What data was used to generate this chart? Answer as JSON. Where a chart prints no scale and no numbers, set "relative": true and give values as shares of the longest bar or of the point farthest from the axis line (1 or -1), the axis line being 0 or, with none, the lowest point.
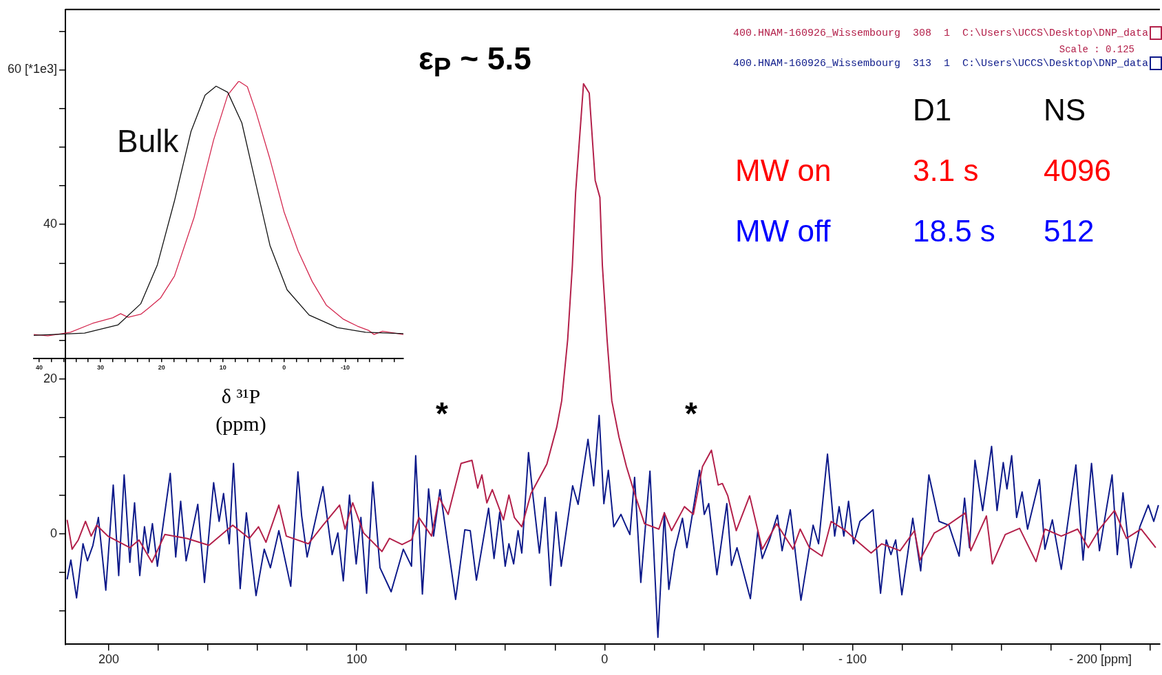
{
  "chart_data": [
    {
      "type": "line",
      "annotations": [
        "ε$_{P}$ ~ 5.5",
        "Scale : 0.125",
        "D1",
        "NS",
        "MW on",
        "3.1 s",
        "4096",
        "MW off",
        "18.5 s",
        "512",
        "*",
        "*"
      ],
      "xlim": [
        217.5,
        -224
      ],
      "ylim": [
        -14.3,
        67.8
      ],
      "xticks": [
        200,
        {
          "value": 180,
          "label": null
        },
        {
          "value": 160,
          "label": null
        },
        {
          "value": 140,
          "label": null
        },
        {
          "value": 120,
          "label": null
        },
        100,
        {
          "value": 80,
          "label": null
        },
        {
          "value": 60,
          "label": null
        },
        {
          "value": 40,
          "label": null
        },
        {
          "value": 20,
          "label": null
        },
        0,
        {
          "value": -20,
          "label": null
        },
        {
          "value": -40,
          "label": null
        },
        {
          "value": -60,
          "label": null
        },
        {
          "value": -80,
          "label": null
        },
        {
          "value": -100,
          "label": "- 100"
        },
        {
          "value": -120,
          "label": null
        },
        {
          "value": -140,
          "label": null
        },
        {
          "value": -160,
          "label": null
        },
        {
          "value": -180,
          "label": null
        },
        {
          "value": -200,
          "label": "- 200 [ppm]"
        },
        {
          "value": -220,
          "label": null
        }
      ],
      "yticks": [
        {
          "value": -10,
          "label": null
        },
        {
          "value": -5,
          "label": null
        },
        0,
        {
          "value": 5,
          "label": null
        },
        {
          "value": 10,
          "label": null
        },
        {
          "value": 15,
          "label": null
        },
        20,
        {
          "value": 25,
          "label": null
        },
        {
          "value": 30,
          "label": null
        },
        {
          "value": 35,
          "label": null
        },
        40,
        {
          "value": 45,
          "label": null
        },
        {
          "value": 50,
          "label": null
        },
        {
          "value": 55,
          "label": null
        },
        {
          "value": 60,
          "label": "60 [*1e3]"
        },
        {
          "value": 65,
          "label": null
        }
      ],
      "grid": false,
      "legend": "top right",
      "marker": "none",
      "series": [
        {
          "name": "400.HNAM-160926_Wissembourg  308  1  C:\\Users\\UCCS\\Desktop\\DNP_data",
          "color": "#b3204a",
          "x": [
            216.8,
            214.8,
            212.3,
            209.4,
            207.1,
            204.9,
            200.4,
            191.5,
            187.8,
            182.6,
            177.4,
            168.5,
            159.6,
            150,
            143.3,
            139.6,
            136.6,
            131.4,
            128.4,
            119.5,
            113.6,
            106.9,
            104.7,
            101.6,
            97.2,
            89.8,
            86.8,
            81.7,
            77.9,
            74.9,
            69.8,
            66.8,
            63.1,
            57.9,
            53.5,
            51.2,
            49.5,
            47.5,
            45.3,
            40.8,
            38.6,
            36.4,
            33.4,
            29.7,
            23.3,
            19.3,
            17.3,
            14.9,
            13,
            11.7,
            8.5,
            6.2,
            3.8,
            1.9,
            0.9,
            -1.0,
            -2.9,
            -5.8,
            -8.8,
            -12.4,
            -16.1,
            -21.9,
            -24.1,
            -27,
            -32.2,
            -35.8,
            -39.5,
            -43.1,
            -45.8,
            -47.5,
            -49.7,
            -53.1,
            -58.5,
            -63.6,
            -69.4,
            -76,
            -78.9,
            -82.6,
            -87.7,
            -91.4,
            -97.2,
            -103.1,
            -107.5,
            -111.8,
            -119.2,
            -125,
            -127.2,
            -133,
            -137.4,
            -145.5,
            -147.7,
            -154,
            -156.4,
            -161.6,
            -167.4,
            -174,
            -177.6,
            -184.2,
            -190.8,
            -195.1,
            -199.6,
            -205.7,
            -210.5,
            -216.4,
            -222.3
          ],
          "values": [
            1.8,
            -2.0,
            -0.8,
            1.6,
            -0.3,
            1.1,
            -0.3,
            -1.8,
            -0.8,
            -3.7,
            -0.1,
            -0.6,
            -1.5,
            1.1,
            -0.6,
            0.9,
            -1.1,
            3.7,
            -0.3,
            -1.3,
            1.1,
            3.7,
            0.6,
            4.0,
            0.1,
            -2.3,
            -0.6,
            -1.4,
            -0.8,
            2.1,
            -0.3,
            4.7,
            2.5,
            9.1,
            9.5,
            5.9,
            7.6,
            4.0,
            5.7,
            1.8,
            5.0,
            2.1,
            0.9,
            5.2,
            9.0,
            13.8,
            17.2,
            25.1,
            34.7,
            44.1,
            58.2,
            57,
            45.7,
            43.5,
            34.7,
            25.1,
            17.2,
            12.5,
            8.7,
            4.9,
            1.3,
            0.6,
            2.7,
            0.4,
            3.5,
            2.5,
            8.7,
            10.8,
            6.3,
            6.5,
            4.9,
            0.4,
            4.9,
            -2.0,
            1.3,
            -2.0,
            0.6,
            -1.8,
            -2.9,
            1.6,
            0.4,
            -1.3,
            -2.5,
            -1.3,
            -2.2,
            0.4,
            -3.4,
            0.1,
            0.9,
            2.7,
            -2.2,
            2.3,
            -3.9,
            -0.1,
            0.7,
            -3.6,
            0.6,
            -0.3,
            0.6,
            -1.8,
            0.6,
            3.0,
            -0.6,
            0.6,
            -1.8
          ]
        },
        {
          "name": "400.HNAM-160926_Wissembourg  313  1  C:\\Users\\UCCS\\Desktop\\DNP_data",
          "color": "#0d1a8a",
          "x": [
            216.8,
            215.3,
            213,
            210.4,
            208.6,
            206.4,
            204.2,
            201.2,
            198.2,
            196,
            193.8,
            191.5,
            189.6,
            187.5,
            185.6,
            184.1,
            182.4,
            180.4,
            175.2,
            173,
            171,
            168.8,
            164.1,
            161.4,
            157.7,
            155.5,
            153.7,
            151.4,
            149.7,
            147,
            144.5,
            140.6,
            137.3,
            134.8,
            131.4,
            126.6,
            123.7,
            122.2,
            120,
            113.6,
            109.9,
            107.6,
            105.4,
            102.9,
            100.2,
            98.3,
            96,
            93.5,
            90.6,
            86.1,
            81.2,
            77.9,
            76.2,
            73.5,
            71,
            69,
            66.4,
            60.1,
            56.4,
            54.2,
            51.7,
            46.8,
            44.6,
            42.3,
            40.1,
            38.6,
            36.7,
            34.9,
            33.4,
            30.7,
            29,
            26.3,
            24,
            21.8,
            19.6,
            17.5,
            12.9,
            10.7,
            6.7,
            4.4,
            2.2,
            0.3,
            -1.5,
            -3.7,
            -6.6,
            -8.5,
            -10.2,
            -12.1,
            -14.6,
            -18.3,
            -21.5,
            -24.1,
            -25.9,
            -28.2,
            -31.4,
            -33.2,
            -38.3,
            -40.2,
            -42,
            -45.3,
            -49.3,
            -51.2,
            -53.4,
            -58.8,
            -61.8,
            -63.6,
            -66.5,
            -69.7,
            -71.6,
            -74.9,
            -79.2,
            -84.1,
            -86.3,
            -89.9,
            -92.8,
            -94.6,
            -96.5,
            -98.4,
            -100.4,
            -103,
            -108.3,
            -111.3,
            -113.6,
            -115.5,
            -117.4,
            -119.9,
            -124.3,
            -127.5,
            -130.8,
            -134.9,
            -138.9,
            -143,
            -145.2,
            -147.2,
            -149.4,
            -152.5,
            -156.1,
            -158.3,
            -160.8,
            -162.3,
            -164.2,
            -166.2,
            -168.4,
            -170.6,
            -175.4,
            -177.6,
            -180.6,
            -184.2,
            -190.1,
            -193,
            -196.4,
            -199.6,
            -204.7,
            -206.8,
            -209.1,
            -212.3,
            -215.9,
            -219.3,
            -221.5,
            -223.4
          ],
          "values": [
            -5.9,
            -3.4,
            -8.3,
            -1.3,
            -3.5,
            -1.5,
            2.1,
            -7.3,
            6.3,
            -5.4,
            7.6,
            -3.7,
            4.0,
            -5.4,
            0.9,
            -2.5,
            1.3,
            -4.2,
            7.8,
            -3.0,
            4.2,
            -3.5,
            3.8,
            -6.3,
            6.6,
            1.6,
            5.2,
            -1.3,
            9.1,
            -7.1,
            2.7,
            -8.0,
            -2.0,
            -4.4,
            0.4,
            -6.8,
            8.0,
            2.3,
            -3.0,
            6.1,
            -2.7,
            0.1,
            -6.1,
            5.0,
            -3.9,
            2.1,
            -7.7,
            6.7,
            -4.4,
            -7.5,
            -2.0,
            -4.2,
            10.1,
            -7.8,
            5.8,
            -0.3,
            5.7,
            -8.5,
            0.5,
            0.4,
            -6.0,
            3.3,
            -3.2,
            2.8,
            -4.2,
            -1.3,
            -3.9,
            0.4,
            -2.5,
            10.5,
            5.2,
            -2.5,
            4.7,
            -6.7,
            2.8,
            -4.2,
            6.2,
            3.8,
            12.2,
            6.2,
            15.3,
            3.9,
            8.2,
            0.9,
            2.5,
            1.1,
            -0.1,
            7.3,
            -6.3,
            8.1,
            -13.4,
            2.7,
            -7.2,
            -2.2,
            2.0,
            -1.8,
            8.2,
            2.5,
            3.9,
            -5.3,
            3.9,
            -4.1,
            -1.8,
            -8.4,
            0.4,
            -3.2,
            -0.8,
            2.4,
            -2.2,
            3.1,
            -8.6,
            1.1,
            -1.3,
            10.3,
            -0.3,
            3.5,
            -0.3,
            4.2,
            -1.3,
            1.6,
            3.1,
            -7.7,
            -0.8,
            -2.7,
            -0.8,
            -7.9,
            2.0,
            -4.8,
            7.6,
            1.6,
            1.1,
            -2.9,
            4.6,
            -1.8,
            9.5,
            3.0,
            11.3,
            3.0,
            9.2,
            5.8,
            10.1,
            2.1,
            5.4,
            0.6,
            7.0,
            -2.0,
            1.8,
            -4.6,
            8.9,
            -3.4,
            9.1,
            -2.2,
            7.6,
            -2.7,
            5.3,
            -4.4,
            0.9,
            3.7,
            1.6,
            3.7
          ]
        }
      ]
    },
    {
      "type": "line",
      "relative": true,
      "xlabel": "δ ³¹P (ppm)",
      "xlim": [
        40.9,
        -19.5
      ],
      "xticks": [
        40,
        {
          "value": 38,
          "label": null
        },
        {
          "value": 36,
          "label": null
        },
        {
          "value": 34,
          "label": null
        },
        {
          "value": 32,
          "label": null
        },
        30,
        {
          "value": 28,
          "label": null
        },
        {
          "value": 26,
          "label": null
        },
        {
          "value": 24,
          "label": null
        },
        {
          "value": 22,
          "label": null
        },
        20,
        {
          "value": 18,
          "label": null
        },
        {
          "value": 16,
          "label": null
        },
        {
          "value": 14,
          "label": null
        },
        {
          "value": 12,
          "label": null
        },
        10,
        {
          "value": 8,
          "label": null
        },
        {
          "value": 6,
          "label": null
        },
        {
          "value": 4,
          "label": null
        },
        {
          "value": 2,
          "label": null
        },
        0,
        {
          "value": -2,
          "label": null
        },
        {
          "value": -4,
          "label": null
        },
        {
          "value": -6,
          "label": null
        },
        {
          "value": -8,
          "label": null
        },
        -10,
        {
          "value": -12,
          "label": null
        },
        {
          "value": -14,
          "label": null
        },
        {
          "value": -16,
          "label": null
        },
        {
          "value": -18,
          "label": null
        }
      ],
      "grid": false,
      "marker": "none",
      "series": [
        {
          "name": "Bulk",
          "color": "#111111",
          "x": [
            40.9,
            32.6,
            27.1,
            23.4,
            20.7,
            17.9,
            15.2,
            12.9,
            11.1,
            9.2,
            6.9,
            4.6,
            2.3,
            -0.5,
            -4.1,
            -8.7,
            -13.3,
            -19.5
          ],
          "values": [
            0.084,
            0.092,
            0.122,
            0.198,
            0.338,
            0.569,
            0.819,
            0.95,
            0.982,
            0.96,
            0.85,
            0.629,
            0.408,
            0.248,
            0.157,
            0.112,
            0.095,
            0.09
          ]
        },
        {
          "color": "#d4284f",
          "x": [
            40.9,
            38.6,
            34.9,
            31.3,
            28,
            26.7,
            25.5,
            23.4,
            22.1,
            20.2,
            17.9,
            14.7,
            11.5,
            9.2,
            7.4,
            6.0,
            4.6,
            2.3,
            0,
            -2.3,
            -4.6,
            -6.9,
            -9.7,
            -12,
            -13.8,
            -14.7,
            -16.1,
            -19.5
          ],
          "values": [
            0.087,
            0.082,
            0.095,
            0.127,
            0.147,
            0.162,
            0.149,
            0.16,
            0.183,
            0.218,
            0.298,
            0.509,
            0.789,
            0.95,
            1.0,
            0.98,
            0.89,
            0.719,
            0.529,
            0.388,
            0.278,
            0.193,
            0.142,
            0.117,
            0.102,
            0.087,
            0.099,
            0.087
          ]
        }
      ]
    }
  ]
}
